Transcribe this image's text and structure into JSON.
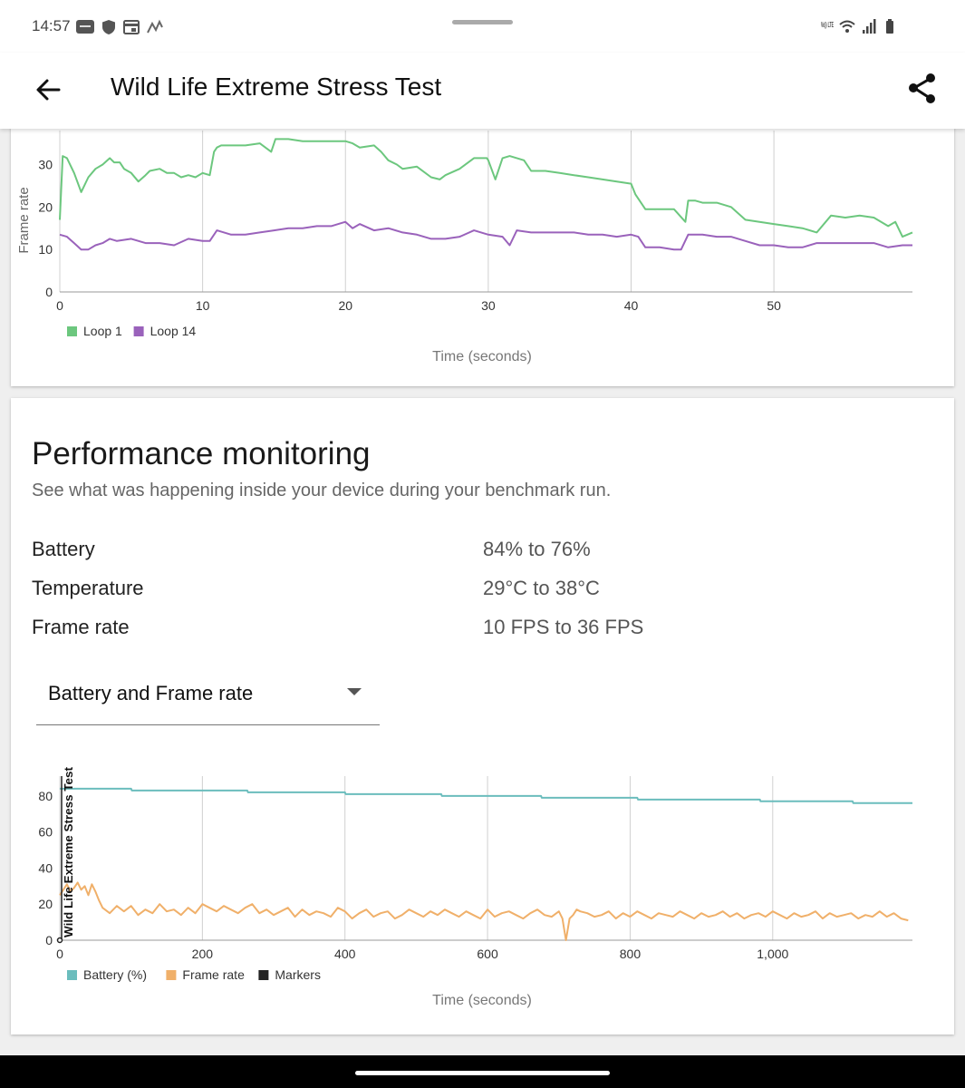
{
  "status_bar": {
    "time": "14:57",
    "left_icons": [
      "vivo-icon",
      "shield-icon",
      "calendar-icon",
      "signal-wave-icon"
    ],
    "right_icons": [
      "volte-icon",
      "wifi-icon",
      "cellular-signal-icon",
      "battery-icon"
    ],
    "volte_text": "Vo)) LTE"
  },
  "app_bar": {
    "title": "Wild Life Extreme Stress Test",
    "back_icon": "arrow-left-icon",
    "share_icon": "share-icon"
  },
  "chart_loops": {
    "type": "line",
    "ylabel": "Frame rate",
    "xlabel": "Time (seconds)",
    "x_ticks": [
      "0",
      "10",
      "20",
      "30",
      "40",
      "50"
    ],
    "y_ticks": [
      "0",
      "10",
      "20",
      "30"
    ],
    "xlim": [
      0,
      59.7
    ],
    "ylim": [
      0,
      38
    ],
    "grid": "vertical",
    "legend_position": "bottom-left",
    "colors": {
      "Loop 1": "#6cc77e",
      "Loop 14": "#9a62bb"
    },
    "series": [
      {
        "name": "Loop 1",
        "x": [
          0,
          0.2,
          0.5,
          1,
          1.5,
          2,
          2.5,
          3,
          3.5,
          3.8,
          4.2,
          4.5,
          5,
          5.5,
          6,
          6.3,
          7,
          7.5,
          8,
          8.5,
          9,
          9.5,
          10,
          10.5,
          10.8,
          11,
          11.3,
          12,
          13,
          14,
          14.8,
          15.1,
          15.4,
          16,
          17,
          18,
          19,
          20,
          20.5,
          21,
          22,
          22.5,
          23,
          23.6,
          24,
          25,
          26,
          26.6,
          27,
          28,
          29,
          29.9,
          30,
          30.5,
          31,
          31.5,
          32,
          32.5,
          33,
          34,
          35,
          36,
          37,
          38,
          39,
          40,
          40.3,
          41,
          42,
          43,
          43.8,
          44,
          44.5,
          45,
          46,
          47,
          48,
          49,
          50,
          51,
          52,
          53,
          54,
          55,
          56,
          57,
          58,
          58.5,
          59,
          59.7
        ],
        "values": [
          17,
          32,
          31.5,
          28,
          23.5,
          27,
          29,
          30,
          31.5,
          30.5,
          30.5,
          29,
          28,
          26,
          27.5,
          28.5,
          29,
          28,
          28,
          27,
          27.5,
          27,
          28,
          27.5,
          33,
          34,
          34.5,
          34.5,
          34.5,
          35,
          33,
          36,
          36,
          36,
          35.5,
          35.5,
          35.5,
          35.5,
          35,
          34,
          34.5,
          33,
          31,
          30,
          29,
          29.5,
          27,
          26.5,
          27.5,
          29,
          31.5,
          31.5,
          31,
          26.5,
          31.5,
          32,
          31.5,
          31,
          28.5,
          28.5,
          28,
          27.5,
          27,
          26.5,
          26,
          25.5,
          23,
          19.5,
          19.5,
          19.5,
          16.5,
          21.5,
          21.5,
          21,
          21,
          20,
          17,
          16.5,
          16,
          15.5,
          15,
          14,
          18,
          17.5,
          18,
          17.5,
          15.5,
          16.5,
          13,
          14
        ]
      },
      {
        "name": "Loop 14",
        "x": [
          0,
          0.5,
          1,
          1.5,
          2,
          2.5,
          3,
          3.5,
          4,
          5,
          6,
          7,
          8,
          9,
          10,
          10.5,
          11,
          12,
          13,
          14,
          15,
          16,
          17,
          18,
          19,
          20,
          20.5,
          21,
          22,
          23,
          24,
          25,
          26,
          27,
          28,
          29,
          30,
          31,
          31.5,
          32,
          33,
          34,
          35,
          36,
          37,
          38,
          39,
          40,
          40.5,
          41,
          42,
          43,
          43.5,
          44,
          45,
          46,
          47,
          48,
          49,
          50,
          51,
          52,
          53,
          54,
          55,
          56,
          57,
          58,
          59,
          59.7
        ],
        "values": [
          13.5,
          13,
          11.5,
          10,
          10,
          11,
          11.5,
          12.5,
          12,
          12.5,
          11.5,
          11.5,
          11,
          12.5,
          12,
          12,
          14.5,
          13.5,
          13.5,
          14,
          14.5,
          15,
          15,
          15.5,
          15.5,
          16.5,
          15,
          16,
          14.5,
          15,
          14,
          13.5,
          12.5,
          12.5,
          13,
          14.5,
          13.5,
          13,
          11,
          14.5,
          14,
          14,
          14,
          14,
          13.5,
          13.5,
          13,
          13.5,
          13,
          10.5,
          10.5,
          10,
          10,
          13.5,
          13.5,
          13,
          13,
          12,
          11,
          11,
          10.5,
          10.5,
          11.5,
          11.5,
          11.5,
          11.5,
          11.5,
          10.5,
          11,
          11
        ]
      }
    ]
  },
  "performance": {
    "title": "Performance monitoring",
    "subtitle": "See what was happening inside your device during your benchmark run.",
    "stats": [
      {
        "label": "Battery",
        "value": "84% to 76%"
      },
      {
        "label": "Temperature",
        "value": "29°C to 38°C"
      },
      {
        "label": "Frame rate",
        "value": "10 FPS to 36 FPS"
      }
    ],
    "dropdown": {
      "selected": "Battery and Frame rate",
      "icon": "dropdown-arrow-icon"
    }
  },
  "chart_monitor": {
    "type": "line",
    "xlabel": "Time (seconds)",
    "marker_label": "Wild Life Extreme Stress Test",
    "x_ticks": [
      "0",
      "200",
      "400",
      "600",
      "800",
      "1,000"
    ],
    "y_ticks": [
      "0",
      "20",
      "40",
      "60",
      "80"
    ],
    "xlim": [
      0,
      1196
    ],
    "ylim": [
      0,
      91
    ],
    "grid": "vertical",
    "legend_position": "bottom-left",
    "legend": [
      "Battery (%)",
      "Frame rate",
      "Markers"
    ],
    "colors": {
      "Battery (%)": "#6bbdbd",
      "Frame rate": "#f0b06a",
      "Markers": "#222222"
    },
    "series": [
      {
        "name": "Battery (%)",
        "x": [
          0,
          100,
          101,
          263,
          264,
          400,
          401,
          535,
          536,
          675,
          676,
          810,
          811,
          982,
          983,
          1112,
          1113,
          1196
        ],
        "values": [
          84,
          84,
          83,
          83,
          82,
          82,
          81,
          81,
          80,
          80,
          79,
          79,
          78,
          78,
          77,
          77,
          76,
          76
        ]
      },
      {
        "name": "Frame rate",
        "x": [
          0,
          5,
          10,
          15,
          20,
          25,
          30,
          35,
          40,
          45,
          50,
          55,
          60,
          70,
          80,
          90,
          100,
          110,
          120,
          130,
          140,
          150,
          160,
          170,
          180,
          190,
          200,
          210,
          220,
          230,
          240,
          250,
          260,
          270,
          280,
          290,
          300,
          310,
          320,
          330,
          340,
          350,
          360,
          370,
          380,
          390,
          400,
          410,
          420,
          430,
          440,
          450,
          460,
          470,
          480,
          490,
          500,
          510,
          520,
          530,
          540,
          550,
          560,
          570,
          580,
          590,
          600,
          610,
          620,
          630,
          640,
          650,
          660,
          670,
          680,
          690,
          700,
          705,
          710,
          715,
          720,
          725,
          730,
          740,
          750,
          760,
          770,
          780,
          790,
          800,
          810,
          820,
          830,
          840,
          850,
          860,
          870,
          880,
          890,
          900,
          910,
          920,
          930,
          940,
          950,
          960,
          970,
          980,
          990,
          1000,
          1010,
          1020,
          1030,
          1040,
          1050,
          1060,
          1070,
          1080,
          1090,
          1100,
          1110,
          1120,
          1130,
          1140,
          1150,
          1160,
          1170,
          1180,
          1190
        ],
        "values": [
          25,
          28,
          31,
          27,
          29,
          32,
          28,
          30,
          25,
          31,
          27,
          22,
          18,
          15,
          19,
          16,
          19,
          14,
          17,
          15,
          20,
          16,
          17,
          14,
          18,
          15,
          20,
          18,
          16,
          19,
          17,
          15,
          18,
          20,
          15,
          17,
          14,
          16,
          18,
          13,
          17,
          14,
          16,
          15,
          13,
          18,
          16,
          12,
          15,
          17,
          13,
          15,
          16,
          12,
          14,
          17,
          15,
          13,
          16,
          14,
          17,
          15,
          13,
          16,
          14,
          12,
          17,
          13,
          15,
          16,
          14,
          12,
          15,
          17,
          14,
          13,
          16,
          12,
          0,
          12,
          14,
          17,
          16,
          15,
          13,
          14,
          16,
          12,
          15,
          13,
          16,
          14,
          12,
          15,
          14,
          13,
          16,
          14,
          12,
          15,
          13,
          14,
          16,
          13,
          15,
          12,
          14,
          15,
          13,
          16,
          14,
          12,
          15,
          13,
          14,
          16,
          12,
          15,
          13,
          14,
          15,
          12,
          14,
          13,
          16,
          13,
          15,
          12,
          11
        ]
      }
    ]
  }
}
